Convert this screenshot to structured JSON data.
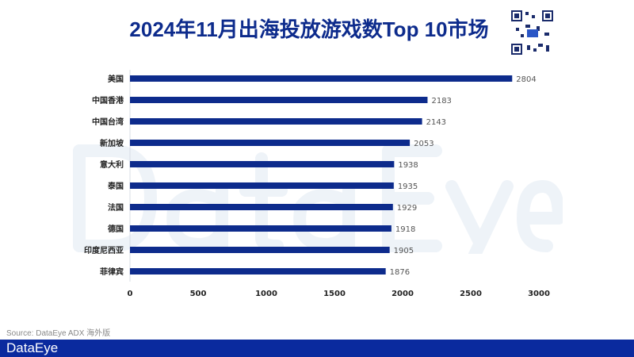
{
  "chart_data": {
    "type": "bar",
    "orientation": "horizontal",
    "title": "2024年11月出海投放游戏数Top 10市场",
    "categories": [
      "美国",
      "中国香港",
      "中国台湾",
      "新加坡",
      "意大利",
      "泰国",
      "法国",
      "德国",
      "印度尼西亚",
      "菲律宾"
    ],
    "values": [
      2804,
      2183,
      2143,
      2053,
      1938,
      1935,
      1929,
      1918,
      1905,
      1876
    ],
    "xlim": [
      0,
      3000
    ],
    "xticks": [
      "0",
      "500",
      "1000",
      "1500",
      "2000",
      "2500",
      "3000"
    ],
    "xlabel": "",
    "ylabel": "",
    "grid": false,
    "bar_color": "#0d2b8c"
  },
  "watermark": "DataEye",
  "source": "Source: DataEye ADX 海外版",
  "footer": {
    "brand": "DataEye",
    "color": "#0a2a9e"
  }
}
